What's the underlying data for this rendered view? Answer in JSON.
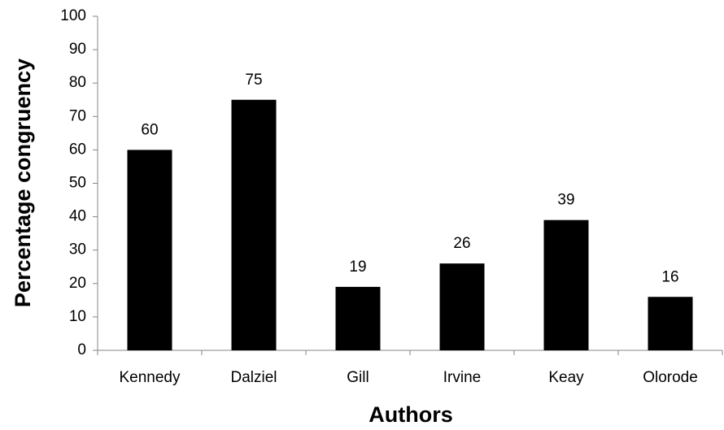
{
  "chart_data": {
    "type": "bar",
    "x_label": "Authors",
    "y_label": "Percentage congruency",
    "categories": [
      "Kennedy",
      "Dalziel",
      "Gill",
      "Irvine",
      "Keay",
      "Olorode"
    ],
    "values": [
      60,
      75,
      19,
      26,
      39,
      16
    ],
    "color": "#000000",
    "ylim": [
      0,
      100
    ],
    "yticks": [
      0,
      10,
      20,
      30,
      40,
      50,
      60,
      70,
      80,
      90,
      100
    ],
    "grid": false,
    "data_labels": true
  }
}
